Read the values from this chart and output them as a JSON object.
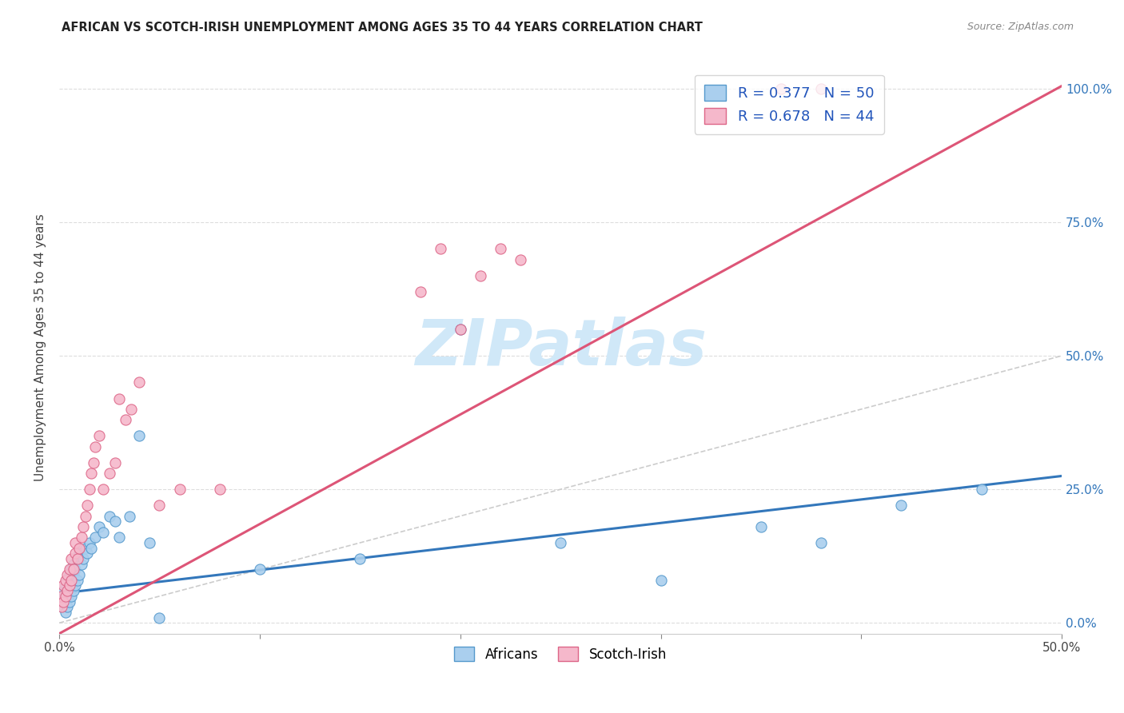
{
  "title": "AFRICAN VS SCOTCH-IRISH UNEMPLOYMENT AMONG AGES 35 TO 44 YEARS CORRELATION CHART",
  "source": "Source: ZipAtlas.com",
  "ylabel": "Unemployment Among Ages 35 to 44 years",
  "xlim": [
    0.0,
    0.5
  ],
  "ylim": [
    -0.02,
    1.05
  ],
  "yticks": [
    0.0,
    0.25,
    0.5,
    0.75,
    1.0
  ],
  "ytick_labels": [
    "0.0%",
    "25.0%",
    "50.0%",
    "75.0%",
    "100.0%"
  ],
  "xticks": [
    0.0,
    0.1,
    0.2,
    0.3,
    0.4,
    0.5
  ],
  "xtick_labels_show": [
    "0.0%",
    "",
    "",
    "",
    "",
    "50.0%"
  ],
  "african_color": "#aacfee",
  "scotch_color": "#f5b8cb",
  "african_edge_color": "#5599cc",
  "scotch_edge_color": "#dd6688",
  "african_line_color": "#3377bb",
  "scotch_line_color": "#dd5577",
  "diagonal_color": "#cccccc",
  "watermark_color": "#d0e8f8",
  "african_x": [
    0.001,
    0.001,
    0.002,
    0.002,
    0.003,
    0.003,
    0.003,
    0.004,
    0.004,
    0.004,
    0.005,
    0.005,
    0.005,
    0.006,
    0.006,
    0.006,
    0.007,
    0.007,
    0.007,
    0.008,
    0.008,
    0.009,
    0.009,
    0.01,
    0.01,
    0.011,
    0.012,
    0.013,
    0.014,
    0.015,
    0.016,
    0.018,
    0.02,
    0.022,
    0.025,
    0.028,
    0.03,
    0.035,
    0.04,
    0.045,
    0.1,
    0.15,
    0.2,
    0.25,
    0.3,
    0.35,
    0.38,
    0.42,
    0.46,
    0.05
  ],
  "african_y": [
    0.05,
    0.03,
    0.04,
    0.06,
    0.02,
    0.05,
    0.07,
    0.03,
    0.06,
    0.08,
    0.04,
    0.07,
    0.09,
    0.05,
    0.08,
    0.1,
    0.06,
    0.09,
    0.11,
    0.07,
    0.1,
    0.08,
    0.12,
    0.09,
    0.13,
    0.11,
    0.12,
    0.14,
    0.13,
    0.15,
    0.14,
    0.16,
    0.18,
    0.17,
    0.2,
    0.19,
    0.16,
    0.2,
    0.35,
    0.15,
    0.1,
    0.12,
    0.55,
    0.15,
    0.08,
    0.18,
    0.15,
    0.22,
    0.25,
    0.01
  ],
  "scotch_x": [
    0.001,
    0.001,
    0.002,
    0.002,
    0.003,
    0.003,
    0.004,
    0.004,
    0.005,
    0.005,
    0.006,
    0.006,
    0.007,
    0.008,
    0.008,
    0.009,
    0.01,
    0.011,
    0.012,
    0.013,
    0.014,
    0.015,
    0.016,
    0.017,
    0.018,
    0.02,
    0.022,
    0.025,
    0.028,
    0.03,
    0.033,
    0.036,
    0.04,
    0.18,
    0.19,
    0.2,
    0.21,
    0.22,
    0.23,
    0.36,
    0.38,
    0.05,
    0.06,
    0.08
  ],
  "scotch_y": [
    0.03,
    0.05,
    0.04,
    0.07,
    0.05,
    0.08,
    0.06,
    0.09,
    0.07,
    0.1,
    0.08,
    0.12,
    0.1,
    0.13,
    0.15,
    0.12,
    0.14,
    0.16,
    0.18,
    0.2,
    0.22,
    0.25,
    0.28,
    0.3,
    0.33,
    0.35,
    0.25,
    0.28,
    0.3,
    0.42,
    0.38,
    0.4,
    0.45,
    0.62,
    0.7,
    0.55,
    0.65,
    0.7,
    0.68,
    1.0,
    1.0,
    0.22,
    0.25,
    0.25
  ],
  "african_R": 0.377,
  "african_N": 50,
  "scotch_R": 0.678,
  "scotch_N": 44,
  "african_reg_slope": 0.44,
  "african_reg_intercept": 0.055,
  "scotch_reg_slope": 2.05,
  "scotch_reg_intercept": -0.02
}
